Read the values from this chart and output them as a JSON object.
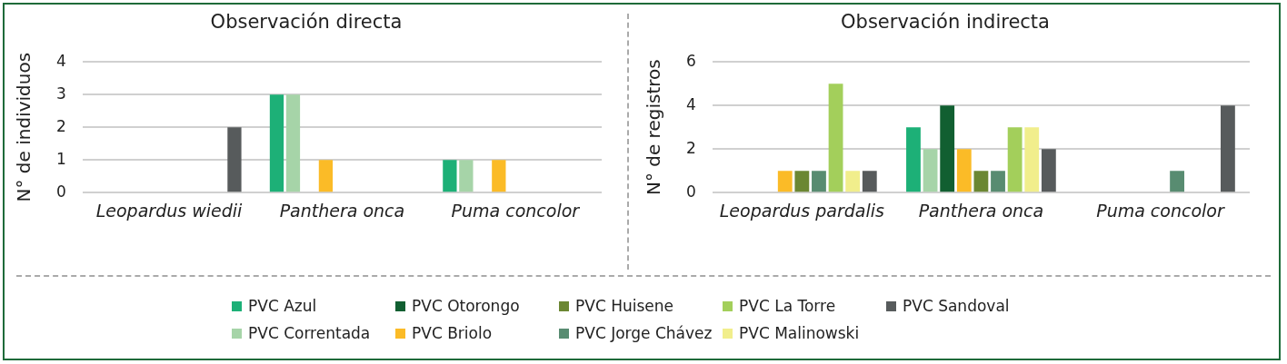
{
  "chart_data": [
    {
      "type": "bar",
      "title": "Observación directa",
      "ylabel": "N° de individuos",
      "categories": [
        "Leopardus wiedii",
        "Panthera onca",
        "Puma concolor"
      ],
      "ylim": [
        0,
        4
      ],
      "yticks": [
        0,
        1,
        2,
        3,
        4
      ],
      "grid": "y",
      "series": [
        {
          "color": "#1db077",
          "values": [
            null,
            3,
            1
          ]
        },
        {
          "color": "#a6d4a8",
          "values": [
            null,
            3,
            1
          ]
        },
        {
          "color": "#115f31",
          "values": [
            null,
            null,
            null
          ]
        },
        {
          "color": "#fbbb27",
          "values": [
            null,
            1,
            1
          ]
        },
        {
          "color": "#6b8733",
          "values": [
            null,
            null,
            null
          ]
        },
        {
          "color": "#588c71",
          "values": [
            null,
            null,
            null
          ]
        },
        {
          "color": "#a3cf5b",
          "values": [
            null,
            null,
            null
          ]
        },
        {
          "color": "#f1ee8c",
          "values": [
            null,
            null,
            null
          ]
        },
        {
          "color": "#575b5c",
          "values": [
            2,
            null,
            null
          ]
        }
      ]
    },
    {
      "type": "bar",
      "title": "Observación indirecta",
      "ylabel": "N° de registros",
      "categories": [
        "Leopardus pardalis",
        "Panthera onca",
        "Puma concolor"
      ],
      "ylim": [
        0,
        6
      ],
      "yticks": [
        0,
        2,
        4,
        6
      ],
      "grid": "y",
      "legend": "bottom",
      "series": [
        {
          "name": "PVC Azul",
          "color": "#1db077",
          "values": [
            null,
            3,
            null
          ]
        },
        {
          "name": "PVC Correntada",
          "color": "#a6d4a8",
          "values": [
            null,
            2,
            null
          ]
        },
        {
          "name": "PVC Otorongo",
          "color": "#115f31",
          "values": [
            null,
            4,
            null
          ]
        },
        {
          "name": "PVC Briolo",
          "color": "#fbbb27",
          "values": [
            1,
            2,
            null
          ]
        },
        {
          "name": "PVC Huisene",
          "color": "#6b8733",
          "values": [
            1,
            1,
            null
          ]
        },
        {
          "name": "PVC Jorge Chávez",
          "color": "#588c71",
          "values": [
            1,
            1,
            1
          ]
        },
        {
          "name": "PVC La Torre",
          "color": "#a3cf5b",
          "values": [
            5,
            3,
            null
          ]
        },
        {
          "name": "PVC Malinowski",
          "color": "#f1ee8c",
          "values": [
            1,
            3,
            null
          ]
        },
        {
          "name": "PVC Sandoval",
          "color": "#575b5c",
          "values": [
            1,
            2,
            4
          ]
        }
      ]
    }
  ]
}
